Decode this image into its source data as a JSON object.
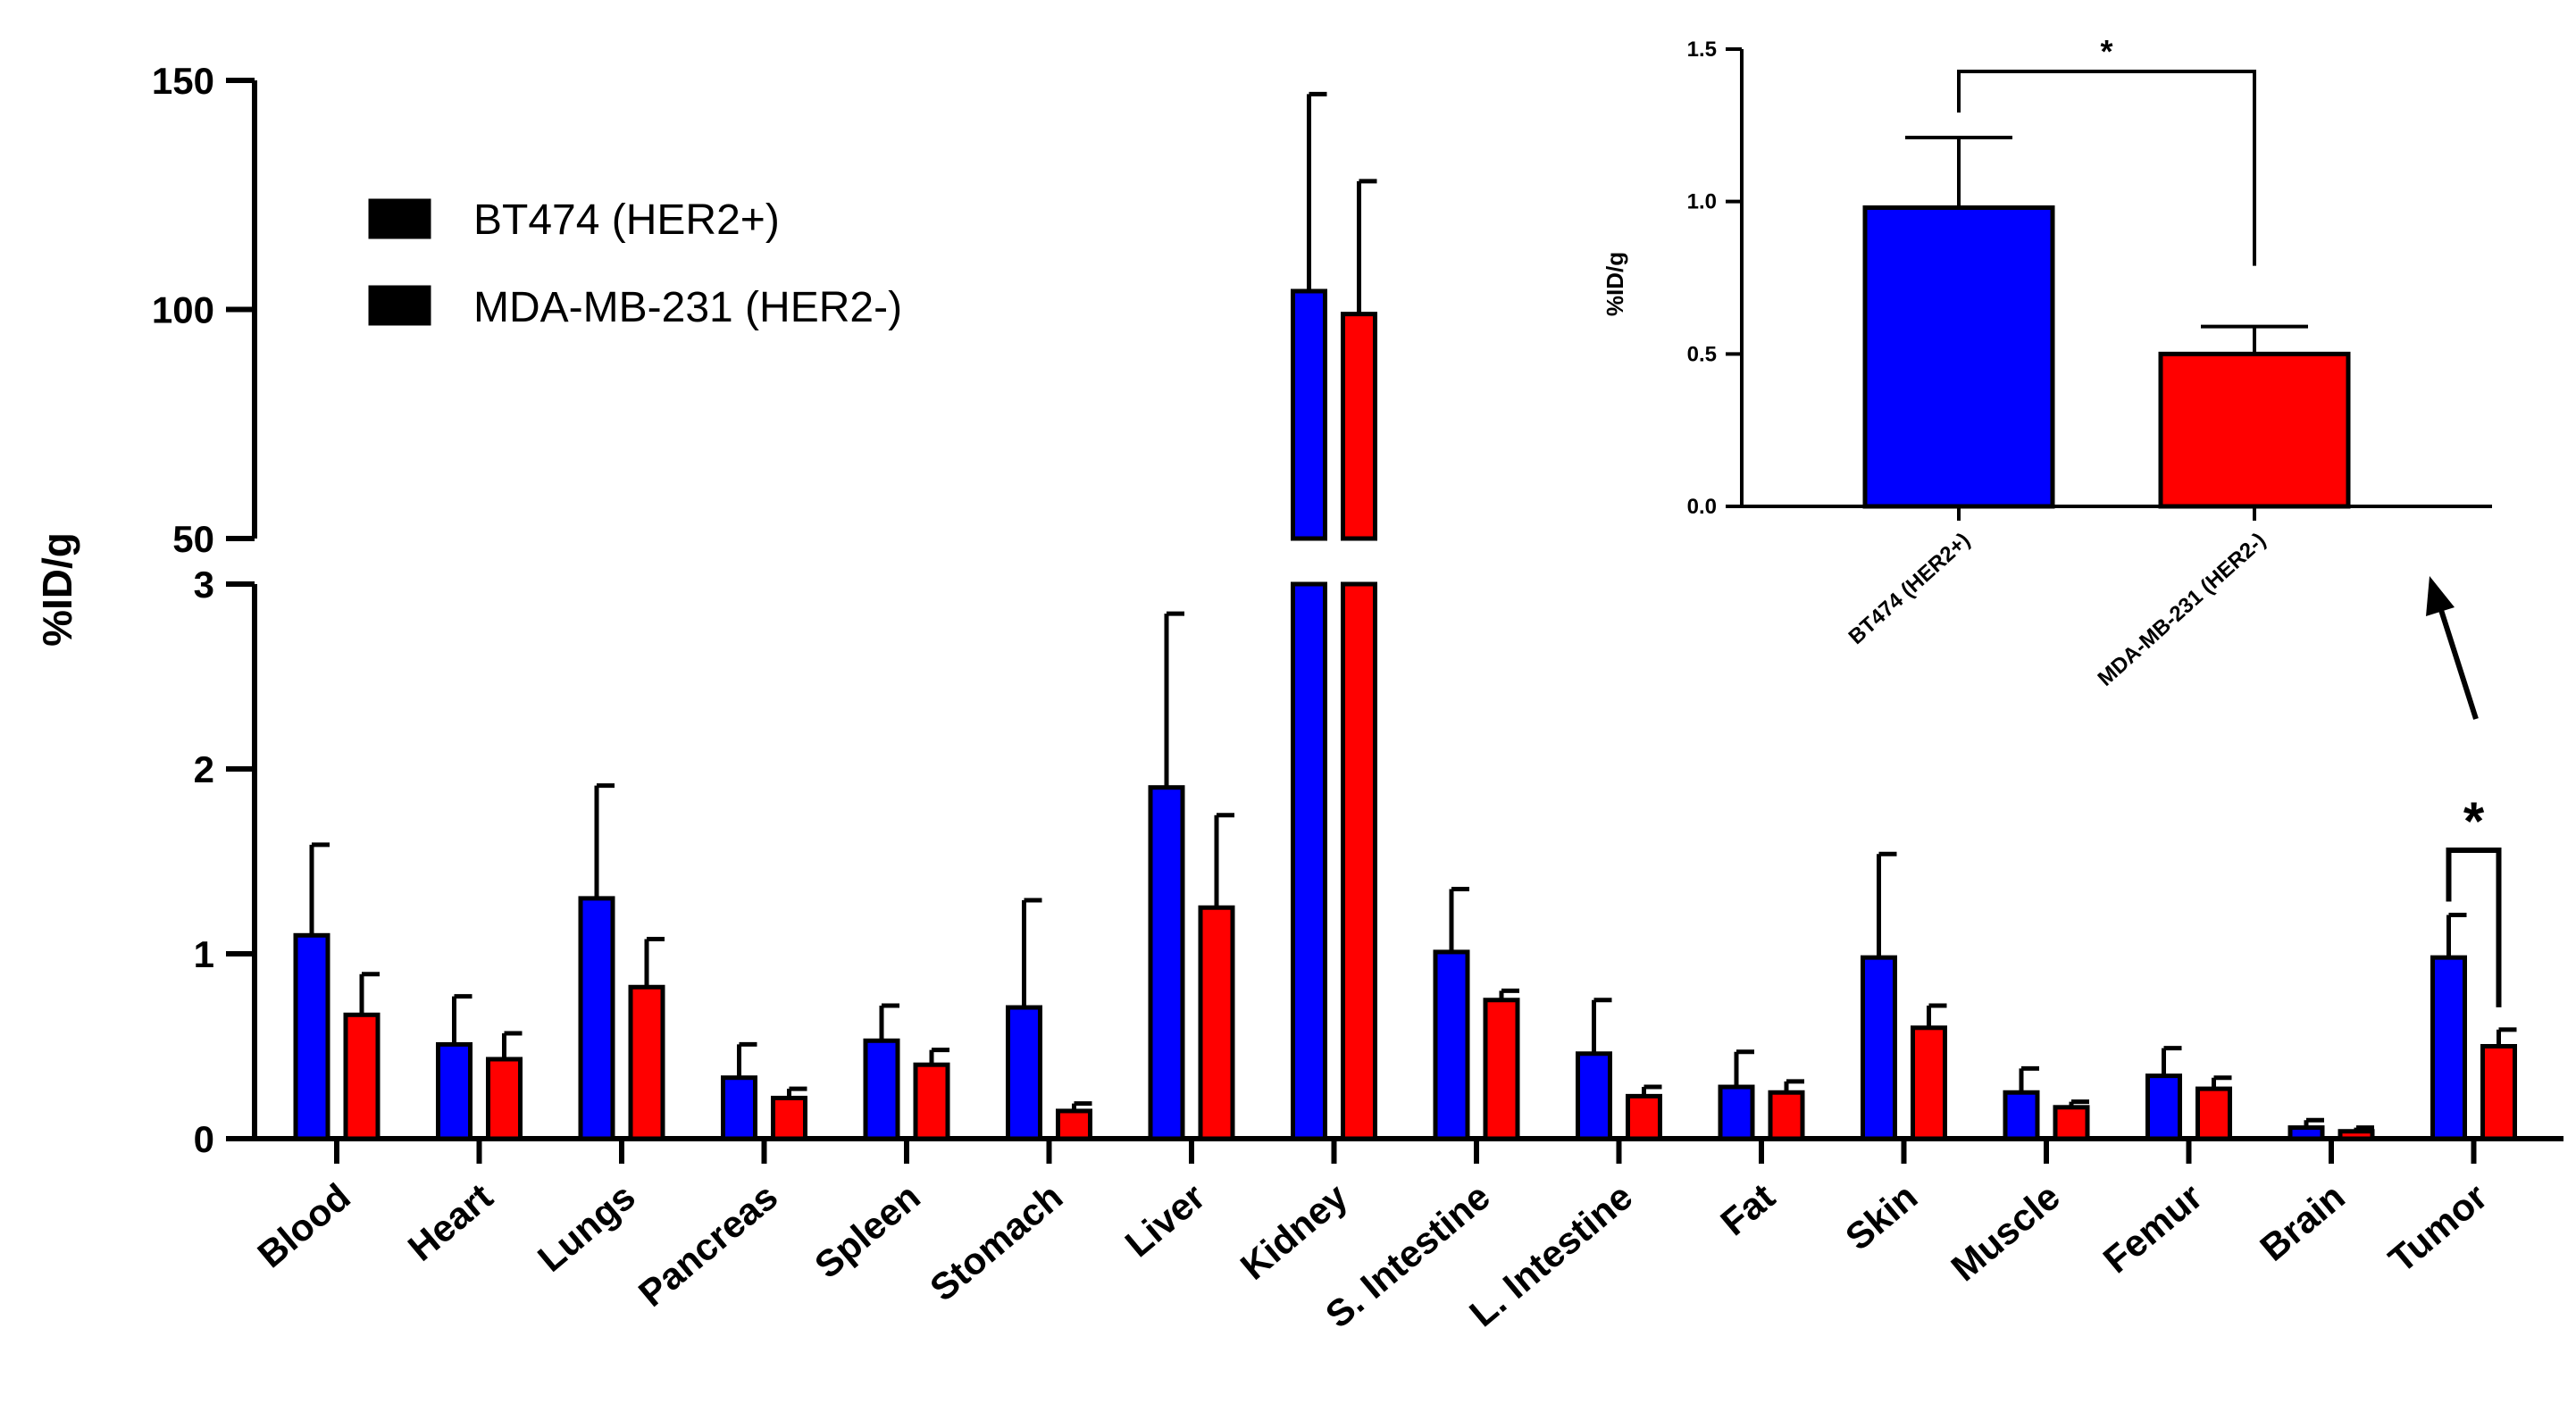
{
  "colors": {
    "series1": "#0000ff",
    "series2": "#ff0000",
    "axis": "#000000"
  },
  "chart_data": [
    {
      "type": "bar",
      "title": "",
      "xlabel": "",
      "ylabel": "%ID/g",
      "y_axis_break": {
        "lower_range": [
          0,
          3
        ],
        "upper_range": [
          50,
          150
        ]
      },
      "lower_ticks": [
        "0",
        "1",
        "2",
        "3"
      ],
      "upper_ticks": [
        "50",
        "100",
        "150"
      ],
      "legend": [
        "BT474 (HER2+)",
        "MDA-MB-231 (HER2-)"
      ],
      "legend_position": "top-left",
      "categories": [
        "Blood",
        "Heart",
        "Lungs",
        "Pancreas",
        "Spleen",
        "Stomach",
        "Liver",
        "Kidney",
        "S. Intestine",
        "L. Intestine",
        "Fat",
        "Skin",
        "Muscle",
        "Femur",
        "Brain",
        "Tumor"
      ],
      "series": [
        {
          "name": "BT474 (HER2+)",
          "values": [
            1.1,
            0.51,
            1.3,
            0.33,
            0.53,
            0.71,
            1.9,
            104,
            1.01,
            0.46,
            0.28,
            0.98,
            0.25,
            0.34,
            0.06,
            0.98
          ],
          "errors": [
            0.49,
            0.26,
            0.61,
            0.18,
            0.19,
            0.58,
            0.94,
            43,
            0.34,
            0.29,
            0.19,
            0.56,
            0.13,
            0.15,
            0.04,
            0.23
          ]
        },
        {
          "name": "MDA-MB-231 (HER2-)",
          "values": [
            0.67,
            0.43,
            0.82,
            0.22,
            0.4,
            0.15,
            1.25,
            99,
            0.75,
            0.23,
            0.25,
            0.6,
            0.17,
            0.27,
            0.04,
            0.5
          ],
          "errors": [
            0.22,
            0.14,
            0.26,
            0.05,
            0.08,
            0.04,
            0.5,
            29,
            0.05,
            0.05,
            0.06,
            0.12,
            0.03,
            0.06,
            0.02,
            0.09
          ]
        }
      ],
      "significance": {
        "category": "Tumor",
        "label": "*"
      }
    },
    {
      "type": "bar",
      "title": "",
      "xlabel": "",
      "ylabel": "%ID/g",
      "ylim": [
        0,
        1.5
      ],
      "ticks": [
        "0.0",
        "0.5",
        "1.0",
        "1.5"
      ],
      "categories": [
        "BT474 (HER2+)",
        "MDA-MB-231 (HER2-)"
      ],
      "values": [
        0.98,
        0.5
      ],
      "errors": [
        0.23,
        0.09
      ],
      "significance": {
        "label": "*"
      }
    }
  ]
}
